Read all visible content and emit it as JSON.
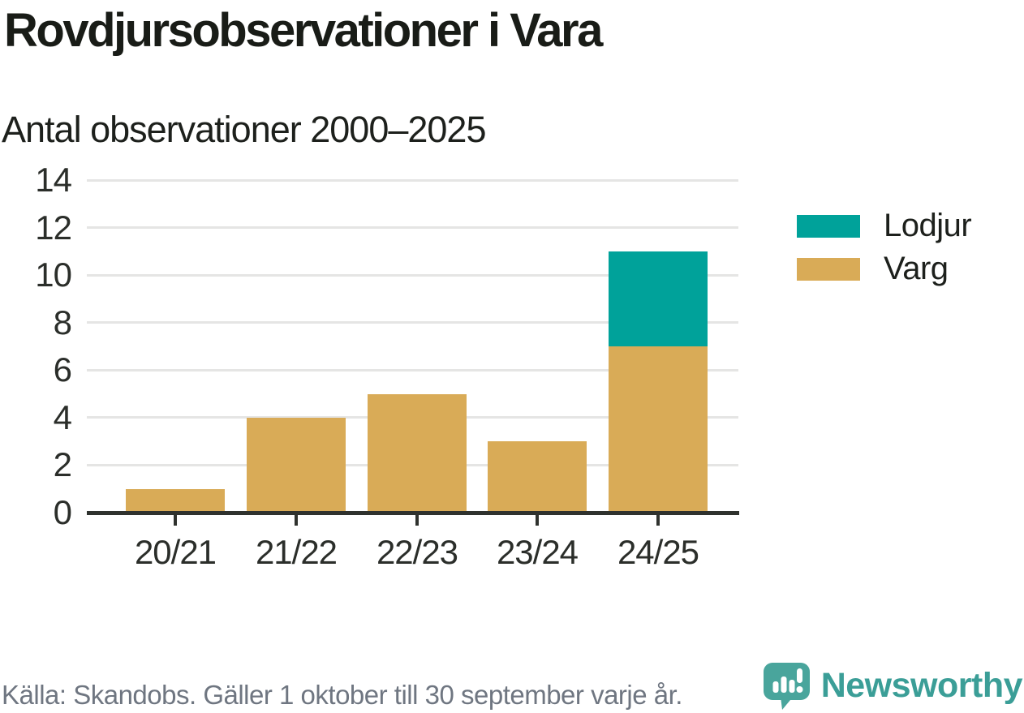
{
  "title": "Rovdjursobservationer i Vara",
  "subtitle": "Antal observationer 2000–2025",
  "legend": {
    "items": [
      {
        "label": "Lodjur",
        "color": "#00a29a"
      },
      {
        "label": "Varg",
        "color": "#d9ab57"
      }
    ]
  },
  "footer": {
    "source": "Källa: Skandobs. Gäller 1 oktober till 30 september varje år.",
    "brand": "Newsworthy"
  },
  "colors": {
    "lodjur": "#00a29a",
    "varg": "#d9ab57",
    "gridline": "#e5e5e4",
    "axis": "#2f322e",
    "title_text": "#191c17",
    "source_text": "#6f7681",
    "brand_teal": "#3b9e97",
    "logo_fill": "#49a59c"
  },
  "chart_data": {
    "type": "bar",
    "stacked": true,
    "title": "Rovdjursobservationer i Vara",
    "subtitle": "Antal observationer 2000–2025",
    "categories": [
      "20/21",
      "21/22",
      "22/23",
      "23/24",
      "24/25"
    ],
    "series": [
      {
        "name": "Varg",
        "color": "#d9ab57",
        "values": [
          1,
          4,
          5,
          3,
          7
        ]
      },
      {
        "name": "Lodjur",
        "color": "#00a29a",
        "values": [
          0,
          0,
          0,
          0,
          4
        ]
      }
    ],
    "totals": [
      1,
      4,
      5,
      3,
      11
    ],
    "xlabel": "",
    "ylabel": "",
    "ylim": [
      0,
      14
    ],
    "yticks": [
      0,
      2,
      4,
      6,
      8,
      10,
      12,
      14
    ],
    "grid": "horizontal",
    "legend_position": "right"
  }
}
